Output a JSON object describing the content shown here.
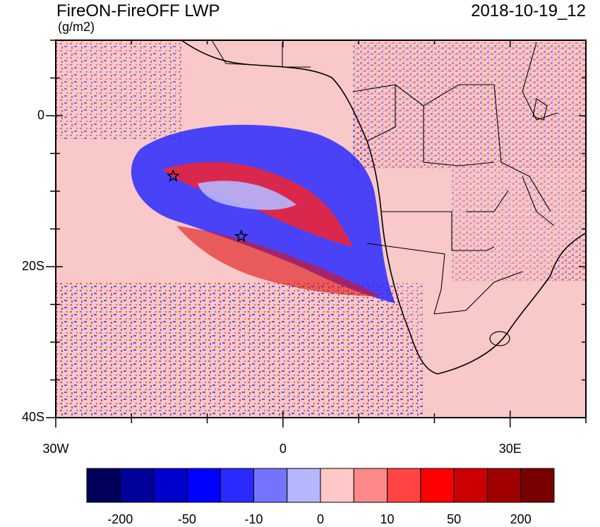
{
  "header": {
    "title": "FireON-FireOFF LWP",
    "units": "(g/m2)",
    "datetime": "2018-10-19_12"
  },
  "map": {
    "lon_range": [
      -30,
      40
    ],
    "lat_range": [
      -40,
      10
    ],
    "lat_ticks": [
      {
        "value": 0,
        "label": "0"
      },
      {
        "value": -20,
        "label": "20S"
      },
      {
        "value": -40,
        "label": "40S"
      }
    ],
    "lon_ticks": [
      {
        "value": -30,
        "label": "30W"
      },
      {
        "value": 0,
        "label": "0"
      },
      {
        "value": 30,
        "label": "30E"
      }
    ],
    "markers": [
      {
        "type": "star-icon",
        "lon": -14.5,
        "lat": -8
      },
      {
        "type": "star-icon",
        "lon": -5.5,
        "lat": -16
      }
    ],
    "background_color": "#f9c8c8"
  },
  "colorbar": {
    "colors": [
      "#00005a",
      "#00009a",
      "#0000cd",
      "#0000ff",
      "#2a2aff",
      "#7373ff",
      "#b6b6ff",
      "#ffc8c8",
      "#ff8888",
      "#ff4444",
      "#ff0000",
      "#cc0000",
      "#a00000",
      "#780000"
    ],
    "labels": [
      {
        "text": "-200",
        "boundary": 1
      },
      {
        "text": "-50",
        "boundary": 3
      },
      {
        "text": "-10",
        "boundary": 5
      },
      {
        "text": "0",
        "boundary": 7
      },
      {
        "text": "10",
        "boundary": 9
      },
      {
        "text": "50",
        "boundary": 11
      },
      {
        "text": "200",
        "boundary": 13
      }
    ]
  }
}
